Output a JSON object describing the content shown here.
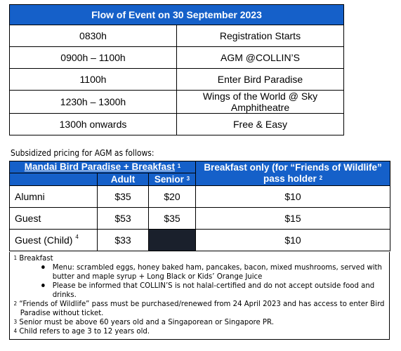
{
  "flow": {
    "title": "Flow of Event on 30 September 2023",
    "rows": [
      {
        "time": "0830h",
        "event": "Registration Starts"
      },
      {
        "time": "0900h – 1100h",
        "event": "AGM @COLLIN’S"
      },
      {
        "time": "1100h",
        "event": "Enter Bird Paradise"
      },
      {
        "time": "1230h – 1300h",
        "event": "Wings of the World @ Sky Amphitheatre"
      },
      {
        "time": "1300h onwards",
        "event": "Free & Easy"
      }
    ]
  },
  "pricing": {
    "subtitle": "Subsidized pricing for AGM as follows:",
    "col_group_1": "Mandai Bird Paradise + Breakfast",
    "col_group_1_sup": "1",
    "col_group_2": "Breakfast only (for “Friends of Wildlife” pass holder",
    "col_group_2_sup": "2",
    "sub_adult": "Adult",
    "sub_senior": "Senior",
    "sub_senior_sup": "3",
    "rows": [
      {
        "label": "Alumni",
        "sup": "",
        "adult": "$35",
        "senior": "$20",
        "breakfast": "$10"
      },
      {
        "label": "Guest",
        "sup": "",
        "adult": "$53",
        "senior": "$35",
        "breakfast": "$15"
      },
      {
        "label": "Guest (Child)",
        "sup": "4",
        "adult": "$33",
        "senior": "",
        "breakfast": "$10"
      }
    ]
  },
  "notes": {
    "n1_sup": "1",
    "n1": "Breakfast",
    "b1": "Menu: scrambled eggs, honey baked ham, pancakes, bacon, mixed mushrooms, served with butter and maple syrup + Long Black or Kids’ Orange Juice",
    "b2": "Please be informed that COLLIN’S is not halal-certified and do not accept outside food and drinks.",
    "n2_sup": "2",
    "n2": "“Friends of Wildlife” pass must be purchased/renewed from 24 April 2023 and has access to enter Bird Paradise without ticket.",
    "n3_sup": "3",
    "n3": "Senior must be above 60 years old and a Singaporean or Singapore PR.",
    "n4_sup": "4",
    "n4": "Child refers to age 3 to 12 years old."
  },
  "colors": {
    "header_blue": "#1560c9",
    "blocked_cell": "#1a202c"
  }
}
